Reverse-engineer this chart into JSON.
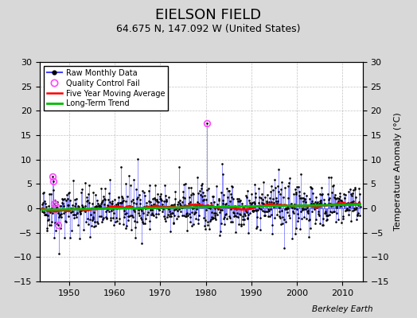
{
  "title": "EIELSON FIELD",
  "subtitle": "64.675 N, 147.092 W (United States)",
  "ylabel": "Temperature Anomaly (°C)",
  "watermark": "Berkeley Earth",
  "start_year": 1944,
  "end_year": 2013,
  "ylim": [
    -15,
    30
  ],
  "yticks": [
    -15,
    -10,
    -5,
    0,
    5,
    10,
    15,
    20,
    25,
    30
  ],
  "xticks": [
    1950,
    1960,
    1970,
    1980,
    1990,
    2000,
    2010
  ],
  "raw_color": "#4444FF",
  "ma_color": "#FF0000",
  "trend_color": "#00BB00",
  "qc_color": "#FF44FF",
  "bg_color": "#D8D8D8",
  "plot_bg": "#FFFFFF",
  "grid_color": "#AAAAAA",
  "legend_labels": [
    "Raw Monthly Data",
    "Quality Control Fail",
    "Five Year Moving Average",
    "Long-Term Trend"
  ],
  "title_fontsize": 13,
  "subtitle_fontsize": 9,
  "label_fontsize": 8,
  "tick_fontsize": 8
}
